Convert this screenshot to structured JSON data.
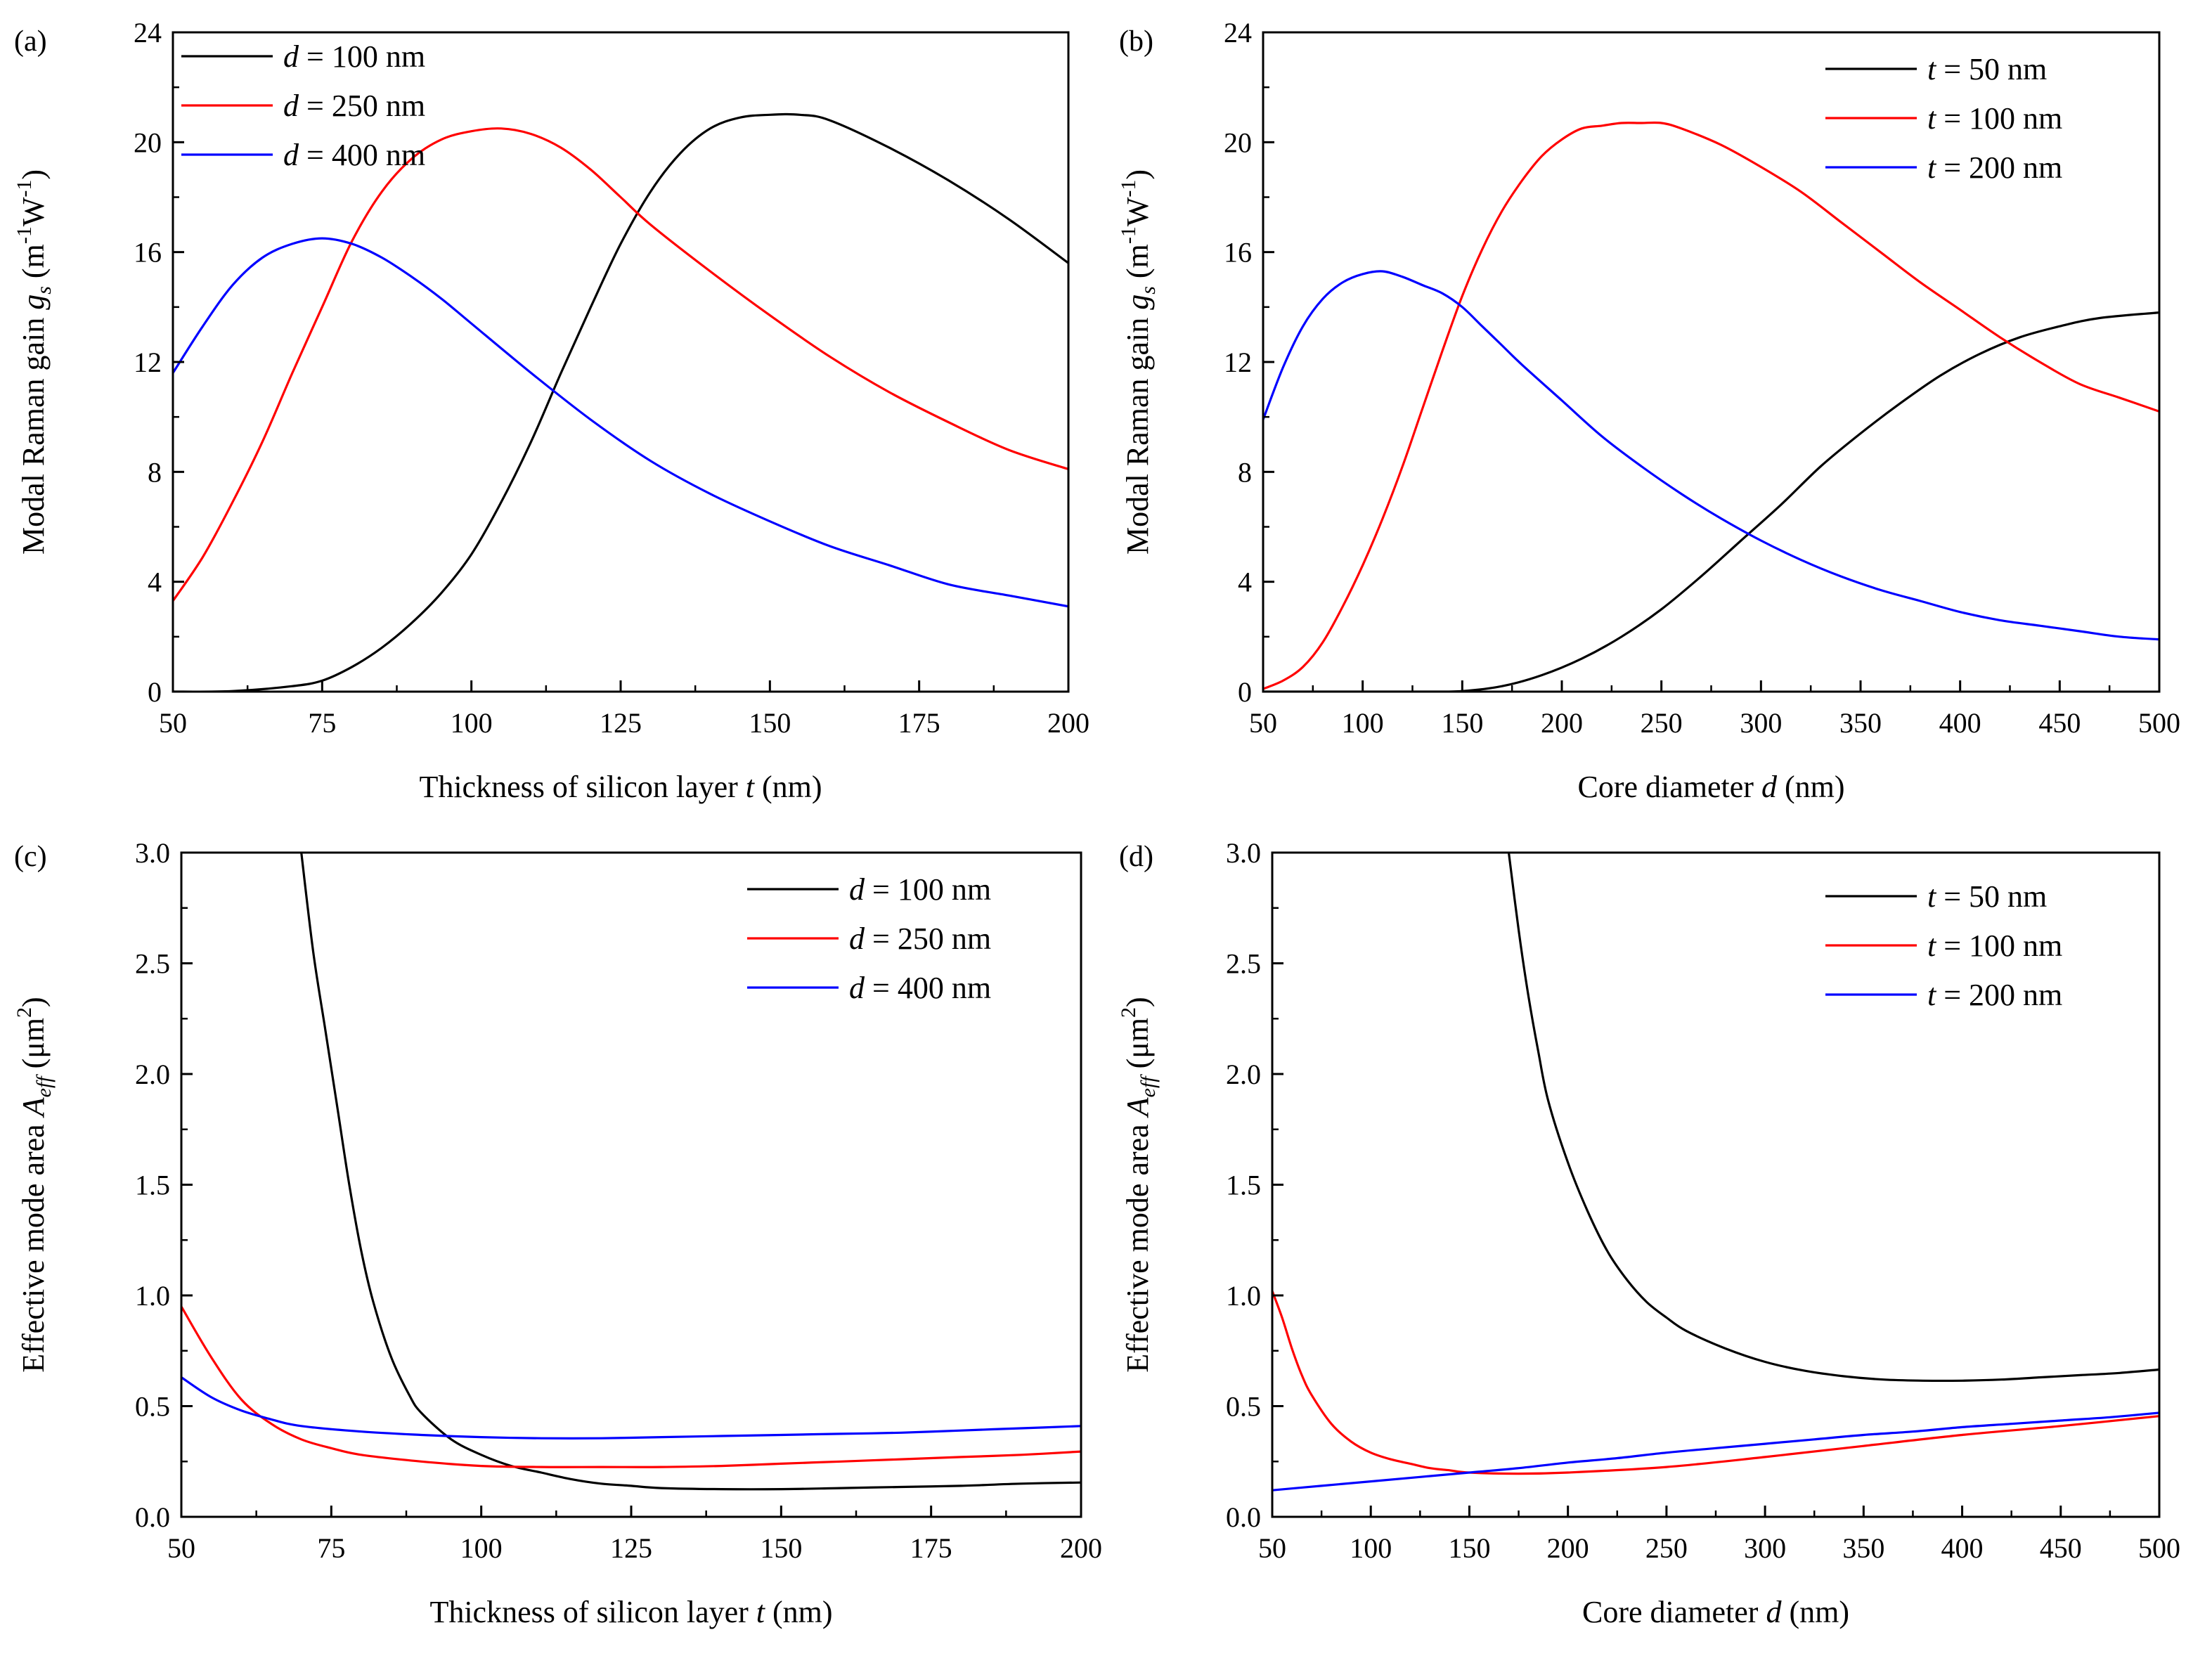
{
  "chart_data": [
    {
      "panel_label": "(a)",
      "type": "line",
      "xlabel": {
        "pre": "Thickness of silicon layer ",
        "var": "t",
        "post": " (nm)"
      },
      "ylabel": {
        "pre": "Modal Raman gain ",
        "var": "g",
        "sub": "s",
        "post1": " (m",
        "sup1": "-1",
        "mid": "W",
        "sup2": "-1",
        "post2": ")"
      },
      "xlim": [
        50,
        200
      ],
      "ylim": [
        0,
        24
      ],
      "xticks": [
        50,
        75,
        100,
        125,
        150,
        175,
        200
      ],
      "yticks": [
        0,
        4,
        8,
        12,
        16,
        20,
        24
      ],
      "legend_position": "top-left",
      "series": [
        {
          "name_var": "d",
          "name_text": " = 100 nm",
          "color": "#000000",
          "x": [
            50,
            60,
            70,
            75,
            80,
            85,
            90,
            95,
            100,
            105,
            110,
            115,
            120,
            125,
            130,
            135,
            140,
            145,
            150,
            155,
            160,
            170,
            180,
            190,
            200
          ],
          "y": [
            0,
            0.02,
            0.2,
            0.4,
            0.9,
            1.6,
            2.5,
            3.6,
            5.0,
            6.9,
            9.1,
            11.6,
            14.0,
            16.3,
            18.2,
            19.6,
            20.5,
            20.9,
            21.0,
            21.0,
            20.8,
            19.8,
            18.6,
            17.2,
            15.6
          ]
        },
        {
          "name_var": "d",
          "name_text": " = 250 nm",
          "color": "#ff0000",
          "x": [
            50,
            55,
            60,
            65,
            70,
            75,
            80,
            85,
            90,
            95,
            100,
            105,
            110,
            115,
            120,
            125,
            130,
            140,
            150,
            160,
            170,
            180,
            190,
            200
          ],
          "y": [
            3.3,
            4.9,
            6.9,
            9.1,
            11.6,
            14.0,
            16.4,
            18.2,
            19.4,
            20.1,
            20.4,
            20.5,
            20.3,
            19.8,
            19.0,
            18.0,
            17.0,
            15.3,
            13.7,
            12.2,
            10.9,
            9.8,
            8.8,
            8.1
          ]
        },
        {
          "name_var": "d",
          "name_text": " = 400 nm",
          "color": "#0000ff",
          "x": [
            50,
            55,
            60,
            65,
            70,
            75,
            80,
            85,
            90,
            95,
            100,
            110,
            120,
            130,
            140,
            150,
            160,
            170,
            180,
            190,
            200
          ],
          "y": [
            11.6,
            13.3,
            14.8,
            15.8,
            16.3,
            16.5,
            16.3,
            15.8,
            15.1,
            14.3,
            13.4,
            11.6,
            9.9,
            8.4,
            7.2,
            6.2,
            5.3,
            4.6,
            3.9,
            3.5,
            3.1
          ]
        }
      ]
    },
    {
      "panel_label": "(b)",
      "type": "line",
      "xlabel": {
        "pre": "Core diameter ",
        "var": "d",
        "post": " (nm)"
      },
      "ylabel": {
        "pre": "Modal Raman gain ",
        "var": "g",
        "sub": "s",
        "post1": " (m",
        "sup1": "-1",
        "mid": "W",
        "sup2": "-1",
        "post2": ")"
      },
      "xlim": [
        50,
        500
      ],
      "ylim": [
        0,
        24
      ],
      "xticks": [
        50,
        100,
        150,
        200,
        250,
        300,
        350,
        400,
        450,
        500
      ],
      "yticks": [
        0,
        4,
        8,
        12,
        16,
        20,
        24
      ],
      "legend_position": "top-right",
      "series": [
        {
          "name_var": "t",
          "name_text": " =  50  nm",
          "color": "#000000",
          "x": [
            50,
            100,
            130,
            150,
            170,
            190,
            210,
            230,
            250,
            270,
            290,
            310,
            330,
            350,
            370,
            390,
            410,
            430,
            450,
            470,
            500
          ],
          "y": [
            0,
            0,
            0,
            0.02,
            0.2,
            0.6,
            1.2,
            2.0,
            3.0,
            4.2,
            5.5,
            6.8,
            8.2,
            9.4,
            10.5,
            11.5,
            12.3,
            12.9,
            13.3,
            13.6,
            13.8
          ]
        },
        {
          "name_var": "t",
          "name_text": " = 100 nm",
          "color": "#ff0000",
          "x": [
            50,
            60,
            70,
            80,
            90,
            100,
            110,
            120,
            130,
            140,
            150,
            160,
            170,
            180,
            190,
            200,
            210,
            220,
            230,
            240,
            250,
            260,
            280,
            300,
            320,
            340,
            360,
            380,
            400,
            420,
            440,
            460,
            480,
            500
          ],
          "y": [
            0.1,
            0.4,
            0.9,
            1.8,
            3.1,
            4.6,
            6.3,
            8.2,
            10.3,
            12.4,
            14.4,
            16.1,
            17.5,
            18.6,
            19.5,
            20.1,
            20.5,
            20.6,
            20.7,
            20.7,
            20.7,
            20.5,
            19.9,
            19.1,
            18.2,
            17.1,
            16.0,
            14.9,
            13.9,
            12.9,
            12.0,
            11.2,
            10.7,
            10.2
          ]
        },
        {
          "name_var": "t",
          "name_text": " = 200 nm",
          "color": "#0000ff",
          "x": [
            50,
            60,
            70,
            80,
            90,
            100,
            110,
            120,
            130,
            140,
            150,
            160,
            170,
            180,
            200,
            220,
            240,
            260,
            280,
            300,
            320,
            340,
            360,
            380,
            400,
            420,
            440,
            460,
            480,
            500
          ],
          "y": [
            9.9,
            11.8,
            13.3,
            14.3,
            14.9,
            15.2,
            15.3,
            15.1,
            14.8,
            14.5,
            14.0,
            13.3,
            12.6,
            11.9,
            10.6,
            9.3,
            8.2,
            7.2,
            6.3,
            5.5,
            4.8,
            4.2,
            3.7,
            3.3,
            2.9,
            2.6,
            2.4,
            2.2,
            2.0,
            1.9
          ]
        }
      ]
    },
    {
      "panel_label": "(c)",
      "type": "line",
      "xlabel": {
        "pre": "Thickness of silicon layer ",
        "var": "t",
        "post": " (nm)"
      },
      "ylabel": {
        "pre": "Effective mode area ",
        "var": "A",
        "sub": "eff",
        "post1": " (μm",
        "sup1": "2",
        "mid": "",
        "sup2": "",
        "post2": ")"
      },
      "xlim": [
        50,
        200
      ],
      "ylim": [
        0,
        3.0
      ],
      "xticks": [
        50,
        75,
        100,
        125,
        150,
        175,
        200
      ],
      "yticks": [
        0.0,
        0.5,
        1.0,
        1.5,
        2.0,
        2.5,
        3.0
      ],
      "ytick_labels": [
        "0.0",
        "0.5",
        "1.0",
        "1.5",
        "2.0",
        "2.5",
        "3.0"
      ],
      "legend_position": "top-right",
      "series": [
        {
          "name_var": "d",
          "name_text": " = 100 nm",
          "color": "#000000",
          "x": [
            70,
            72,
            74,
            76,
            78,
            80,
            82,
            85,
            88,
            90,
            95,
            100,
            105,
            110,
            115,
            120,
            125,
            130,
            140,
            150,
            160,
            170,
            180,
            190,
            200
          ],
          "y": [
            3.0,
            2.55,
            2.2,
            1.85,
            1.5,
            1.2,
            0.97,
            0.72,
            0.55,
            0.47,
            0.35,
            0.28,
            0.23,
            0.2,
            0.17,
            0.15,
            0.14,
            0.13,
            0.125,
            0.125,
            0.13,
            0.135,
            0.14,
            0.15,
            0.155
          ]
        },
        {
          "name_var": "d",
          "name_text": " = 250 nm",
          "color": "#ff0000",
          "x": [
            50,
            55,
            60,
            65,
            70,
            75,
            80,
            90,
            100,
            110,
            120,
            130,
            140,
            150,
            160,
            170,
            180,
            190,
            200
          ],
          "y": [
            0.95,
            0.72,
            0.53,
            0.42,
            0.35,
            0.31,
            0.28,
            0.25,
            0.23,
            0.225,
            0.225,
            0.225,
            0.23,
            0.24,
            0.25,
            0.26,
            0.27,
            0.28,
            0.295
          ]
        },
        {
          "name_var": "d",
          "name_text": " = 400 nm",
          "color": "#0000ff",
          "x": [
            50,
            55,
            60,
            65,
            70,
            80,
            90,
            100,
            110,
            120,
            130,
            140,
            150,
            160,
            170,
            180,
            190,
            200
          ],
          "y": [
            0.63,
            0.54,
            0.48,
            0.44,
            0.41,
            0.385,
            0.37,
            0.36,
            0.355,
            0.355,
            0.36,
            0.365,
            0.37,
            0.375,
            0.38,
            0.39,
            0.4,
            0.41
          ]
        }
      ]
    },
    {
      "panel_label": "(d)",
      "type": "line",
      "xlabel": {
        "pre": "Core diameter ",
        "var": "d",
        "post": " (nm)"
      },
      "ylabel": {
        "pre": "Effective mode area ",
        "var": "A",
        "sub": "eff",
        "post1": " (μm",
        "sup1": "2",
        "mid": "",
        "sup2": "",
        "post2": ")"
      },
      "xlim": [
        50,
        500
      ],
      "ylim": [
        0,
        3.0
      ],
      "xticks": [
        50,
        100,
        150,
        200,
        250,
        300,
        350,
        400,
        450,
        500
      ],
      "yticks": [
        0.0,
        0.5,
        1.0,
        1.5,
        2.0,
        2.5,
        3.0
      ],
      "ytick_labels": [
        "0.0",
        "0.5",
        "1.0",
        "1.5",
        "2.0",
        "2.5",
        "3.0"
      ],
      "legend_position": "top-right",
      "series": [
        {
          "name_var": "t",
          "name_text": " =  50  nm",
          "color": "#000000",
          "x": [
            170,
            175,
            180,
            185,
            190,
            200,
            210,
            220,
            230,
            240,
            250,
            260,
            280,
            300,
            320,
            340,
            360,
            380,
            400,
            420,
            440,
            460,
            480,
            500
          ],
          "y": [
            3.0,
            2.65,
            2.35,
            2.1,
            1.88,
            1.6,
            1.38,
            1.2,
            1.07,
            0.97,
            0.9,
            0.84,
            0.76,
            0.7,
            0.66,
            0.635,
            0.62,
            0.615,
            0.615,
            0.62,
            0.63,
            0.64,
            0.65,
            0.665
          ]
        },
        {
          "name_var": "t",
          "name_text": " = 100 nm",
          "color": "#ff0000",
          "x": [
            50,
            55,
            60,
            65,
            70,
            80,
            90,
            100,
            110,
            120,
            130,
            140,
            150,
            175,
            200,
            250,
            300,
            350,
            400,
            450,
            500
          ],
          "y": [
            1.02,
            0.9,
            0.76,
            0.64,
            0.55,
            0.42,
            0.34,
            0.29,
            0.26,
            0.24,
            0.22,
            0.21,
            0.2,
            0.195,
            0.2,
            0.225,
            0.27,
            0.32,
            0.37,
            0.41,
            0.455
          ]
        },
        {
          "name_var": "t",
          "name_text": " = 200 nm",
          "color": "#0000ff",
          "x": [
            50,
            75,
            100,
            125,
            150,
            175,
            200,
            225,
            250,
            275,
            300,
            325,
            350,
            375,
            400,
            425,
            450,
            475,
            500
          ],
          "y": [
            0.12,
            0.14,
            0.16,
            0.18,
            0.2,
            0.22,
            0.245,
            0.265,
            0.29,
            0.31,
            0.33,
            0.35,
            0.37,
            0.385,
            0.405,
            0.42,
            0.435,
            0.45,
            0.47
          ]
        }
      ]
    }
  ]
}
